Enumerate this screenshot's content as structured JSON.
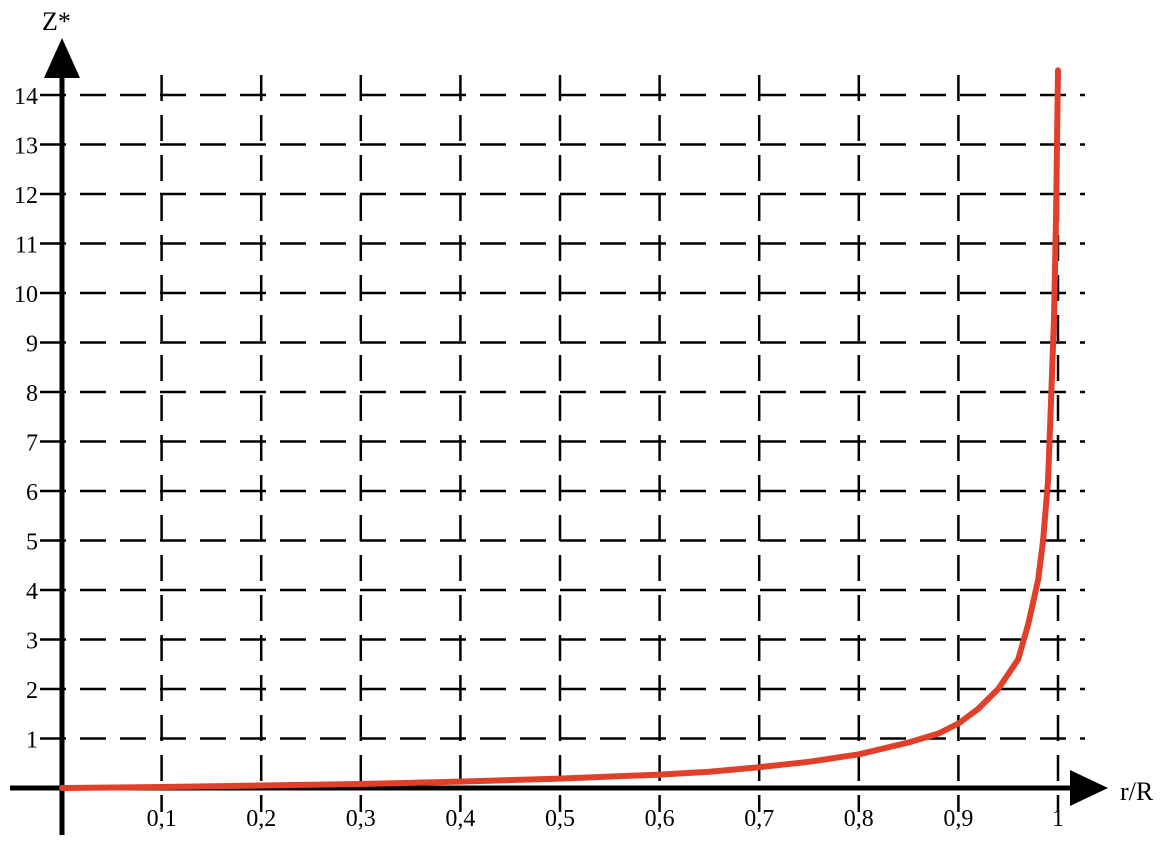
{
  "chart_data": {
    "type": "line",
    "title": "",
    "xlabel": "r/R",
    "ylabel": "Z*",
    "xlim": [
      0,
      1
    ],
    "ylim": [
      0,
      14
    ],
    "grid": true,
    "x_ticks": [
      "0,1",
      "0,2",
      "0,3",
      "0,4",
      "0,5",
      "0,6",
      "0,7",
      "0,8",
      "0,9",
      "1"
    ],
    "x_tick_values": [
      0.1,
      0.2,
      0.3,
      0.4,
      0.5,
      0.6,
      0.7,
      0.8,
      0.9,
      1.0
    ],
    "y_ticks": [
      "1",
      "2",
      "3",
      "4",
      "5",
      "6",
      "7",
      "8",
      "9",
      "10",
      "11",
      "12",
      "13",
      "14"
    ],
    "y_tick_values": [
      1,
      2,
      3,
      4,
      5,
      6,
      7,
      8,
      9,
      10,
      11,
      12,
      13,
      14
    ],
    "series": [
      {
        "color": "#e0402a",
        "x": [
          0,
          0.1,
          0.2,
          0.3,
          0.4,
          0.5,
          0.6,
          0.65,
          0.7,
          0.75,
          0.8,
          0.85,
          0.88,
          0.9,
          0.92,
          0.94,
          0.96,
          0.97,
          0.98,
          0.985,
          0.99,
          0.993,
          0.996,
          0.998,
          1.0
        ],
        "y": [
          0,
          0.02,
          0.05,
          0.08,
          0.13,
          0.19,
          0.27,
          0.33,
          0.42,
          0.53,
          0.68,
          0.92,
          1.1,
          1.3,
          1.6,
          2.0,
          2.6,
          3.3,
          4.2,
          5.0,
          6.2,
          7.8,
          9.5,
          11.5,
          14.5
        ]
      }
    ]
  }
}
